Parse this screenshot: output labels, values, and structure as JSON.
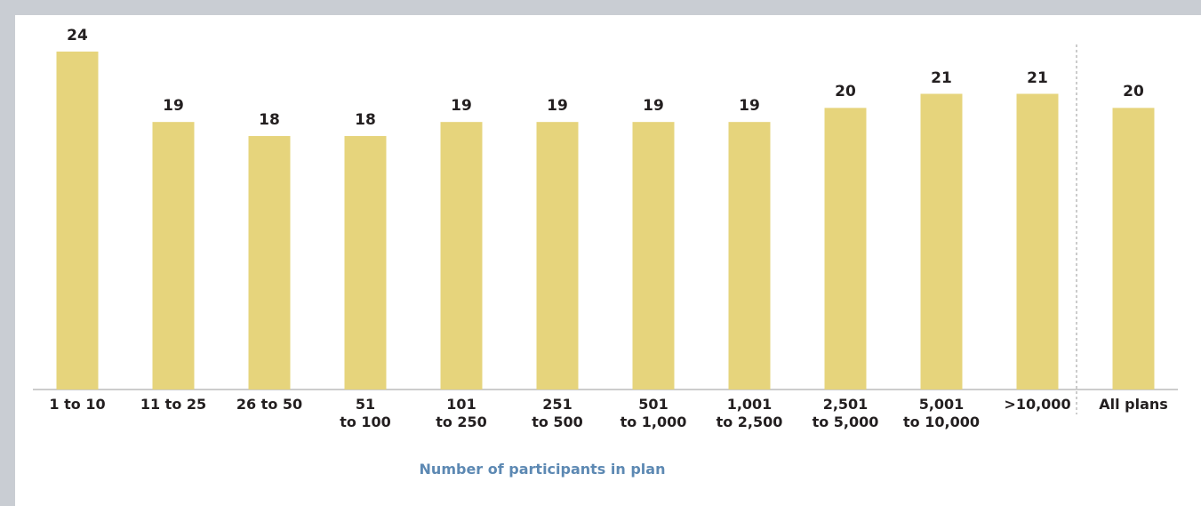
{
  "chart_data": {
    "type": "bar",
    "x_label": "Number of participants in plan",
    "categories": [
      "1 to 10",
      "11 to 25",
      "26 to 50",
      "51\nto 100",
      "101\nto 250",
      "251\nto 500",
      "501\nto 1,000",
      "1,001\nto 2,500",
      "2,501\nto 5,000",
      "5,001\nto 10,000",
      ">10,000",
      "All plans"
    ],
    "values": [
      24,
      19,
      18,
      18,
      19,
      19,
      19,
      19,
      20,
      21,
      21,
      20
    ],
    "color": "#e6d47c",
    "ylim": [
      0,
      24
    ]
  }
}
